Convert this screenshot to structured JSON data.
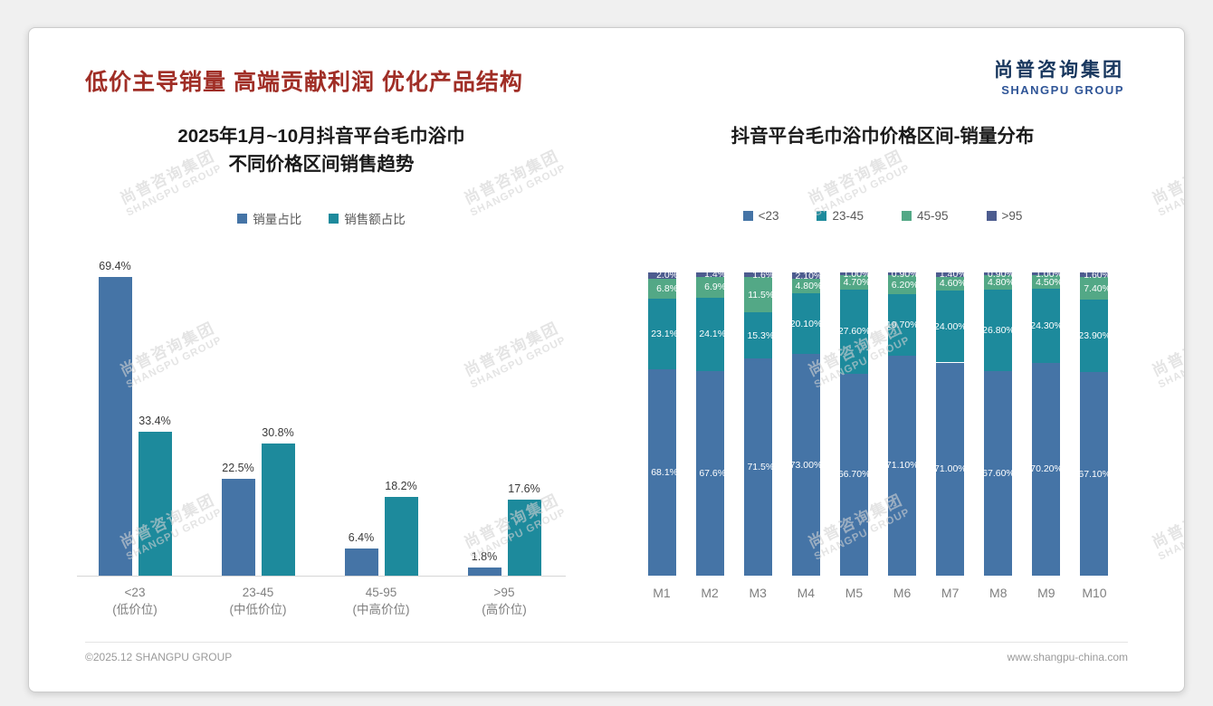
{
  "page": {
    "title": "低价主导销量 高端贡献利润 优化产品结构",
    "logo": {
      "cn": "尚普咨询集团",
      "en": "SHANGPU GROUP"
    },
    "watermark": {
      "cn": "尚普咨询集团",
      "en": "SHANGPU GROUP"
    },
    "footer": {
      "left": "©2025.12 SHANGPU GROUP",
      "right": "www.shangpu-china.com"
    }
  },
  "colors": {
    "title_red": "#A02E26",
    "logo_navy": "#17365D",
    "logo_blue": "#2F5597",
    "axis_gray": "#d6d6d6",
    "label_gray": "#7f7f7f"
  },
  "chart_data": [
    {
      "type": "bar",
      "variant": "grouped",
      "title_lines": [
        "2025年1月~10月抖音平台毛巾浴巾",
        "不同价格区间销售趋势"
      ],
      "categories": [
        "<23",
        "23-45",
        "45-95",
        ">95"
      ],
      "category_sublabels": [
        "(低价位)",
        "(中低价位)",
        "(中高价位)",
        "(高价位)"
      ],
      "series": [
        {
          "name": "销量占比",
          "color": "#4574A6",
          "values": [
            69.4,
            22.5,
            6.4,
            1.8
          ],
          "labels": [
            "69.4%",
            "22.5%",
            "6.4%",
            "1.8%"
          ]
        },
        {
          "name": "销售额占比",
          "color": "#1D8A9C",
          "values": [
            33.4,
            30.8,
            18.2,
            17.6
          ],
          "labels": [
            "33.4%",
            "30.8%",
            "18.2%",
            "17.6%"
          ]
        }
      ],
      "ylim": [
        0,
        75
      ],
      "grid": false,
      "legend_position": "top"
    },
    {
      "type": "bar",
      "variant": "stacked-percent",
      "title": "抖音平台毛巾浴巾价格区间-销量分布",
      "categories": [
        "M1",
        "M2",
        "M3",
        "M4",
        "M5",
        "M6",
        "M7",
        "M8",
        "M9",
        "M10"
      ],
      "series": [
        {
          "name": "<23",
          "color": "#4574A6",
          "values": [
            68.1,
            67.6,
            71.5,
            73.0,
            66.7,
            71.1,
            71.0,
            67.6,
            70.2,
            67.1
          ],
          "labels": [
            "68.1%",
            "67.6%",
            "71.5%",
            "73.00%",
            "66.70%",
            "71.10%",
            "71.00%",
            "67.60%",
            "70.20%",
            "67.10%"
          ]
        },
        {
          "name": "23-45",
          "color": "#1D8A9C",
          "values": [
            23.1,
            24.1,
            15.3,
            20.1,
            27.6,
            19.7,
            24.0,
            26.8,
            24.3,
            23.9
          ],
          "labels": [
            "23.1%",
            "24.1%",
            "15.3%",
            "20.10%",
            "27.60%",
            "19.70%",
            "24.00%",
            "26.80%",
            "24.30%",
            "23.90%"
          ]
        },
        {
          "name": "45-95",
          "color": "#53A886",
          "values": [
            6.8,
            6.9,
            11.5,
            4.8,
            4.7,
            6.2,
            4.6,
            4.8,
            4.5,
            7.4
          ],
          "labels": [
            "6.8%",
            "6.9%",
            "11.5%",
            "4.80%",
            "4.70%",
            "6.20%",
            "4.60%",
            "4.80%",
            "4.50%",
            "7.40%"
          ]
        },
        {
          "name": ">95",
          "color": "#4D5C8F",
          "values": [
            2.0,
            1.4,
            1.6,
            2.1,
            1.0,
            0.9,
            1.4,
            0.9,
            1.0,
            1.6
          ],
          "labels": [
            "2.0%",
            "1.4%",
            "1.6%",
            "2.10%",
            "1.00%",
            "0.90%",
            "1.40%",
            "0.90%",
            "1.00%",
            "1.60%"
          ]
        }
      ],
      "ylim": [
        0,
        100
      ],
      "grid": false,
      "legend_position": "top"
    }
  ]
}
